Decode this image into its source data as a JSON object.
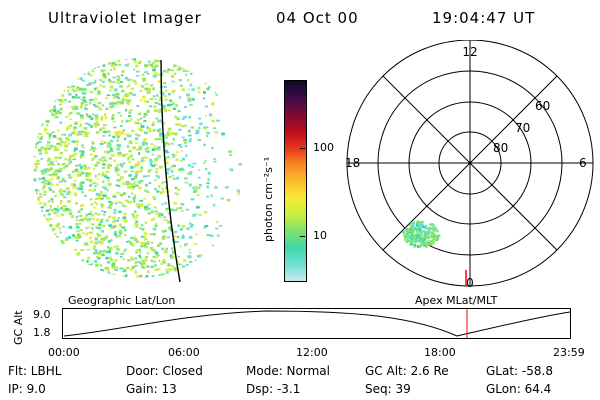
{
  "header": {
    "instrument": "Ultraviolet Imager",
    "date": "04 Oct 00",
    "time": "19:04:47 UT"
  },
  "image_panel": {
    "image_label": "Geographic Lat/Lon",
    "polar_label": "Apex  MLat/MLT"
  },
  "colorbar": {
    "unit_label": "photon cm⁻²s⁻¹",
    "ticks": [
      "100",
      "10"
    ],
    "scale": "log",
    "colors": [
      "#cfe8f0",
      "#6ee0d0",
      "#3fd6a6",
      "#7ee36a",
      "#c8ef42",
      "#f5ea35",
      "#fdbb2e",
      "#f7871f",
      "#e4341d",
      "#b80c1d",
      "#7d0a33",
      "#3d0a4a",
      "#0b0a2a"
    ]
  },
  "polar": {
    "mlt_labels": [
      "12",
      "18",
      "6",
      "0"
    ],
    "lat_labels": [
      "60",
      "70",
      "80"
    ],
    "highlight_color": "#ff0000"
  },
  "altitude_panel": {
    "ylabel": "GC Alt",
    "yticks": [
      "9.0",
      "1.8"
    ],
    "xticks": [
      "00:00",
      "06:00",
      "12:00",
      "18:00",
      "23:59"
    ],
    "current_time_color": "#ff0000"
  },
  "footer": {
    "filter": "Flt:  LBHL",
    "ip": "IP:  9.0",
    "door": "Door:  Closed",
    "gain": "Gain:  13",
    "mode": "Mode:  Normal",
    "dsp": "Dsp:    -3.1",
    "gc_alt": "GC Alt:  2.6 Re",
    "seq": "Seq:  39",
    "glat": "GLat:    -58.8",
    "glon": "GLon:   64.4"
  }
}
